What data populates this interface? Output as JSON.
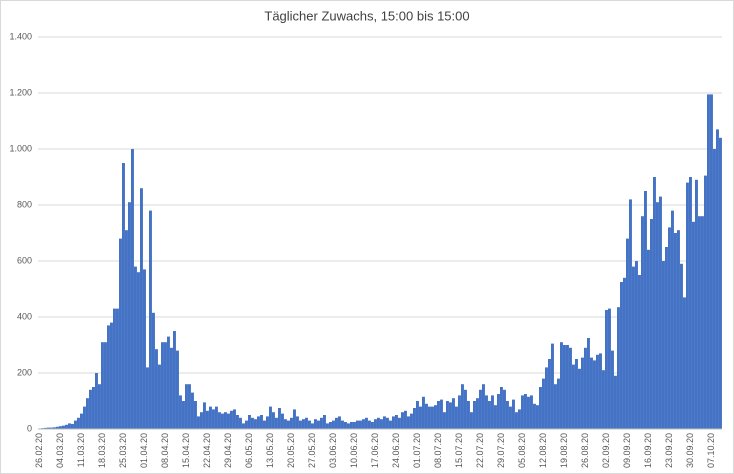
{
  "chart_data": {
    "type": "bar",
    "title": "Täglicher Zuwachs, 15:00 bis 15:00",
    "color": "#4472c4",
    "grid": true,
    "ylim": [
      0,
      1400
    ],
    "yticks": [
      0,
      200,
      400,
      600,
      800,
      {
        "value": 1000,
        "label": "1.000"
      },
      {
        "value": 1200,
        "label": "1.200"
      },
      {
        "value": 1400,
        "label": "1.400"
      }
    ],
    "categories": [
      "26.02.20",
      null,
      null,
      null,
      null,
      null,
      null,
      "04.03.20",
      null,
      null,
      null,
      null,
      null,
      null,
      "11.03.20",
      null,
      null,
      null,
      null,
      null,
      null,
      "18.03.20",
      null,
      null,
      null,
      null,
      null,
      null,
      "25.03.20",
      null,
      null,
      null,
      null,
      null,
      null,
      "01.04.20",
      null,
      null,
      null,
      null,
      null,
      null,
      "08.04.20",
      null,
      null,
      null,
      null,
      null,
      null,
      "15.04.20",
      null,
      null,
      null,
      null,
      null,
      null,
      "22.04.20",
      null,
      null,
      null,
      null,
      null,
      null,
      "29.04.20",
      null,
      null,
      null,
      null,
      null,
      null,
      "06.05.20",
      null,
      null,
      null,
      null,
      null,
      null,
      "13.05.20",
      null,
      null,
      null,
      null,
      null,
      null,
      "20.05.20",
      null,
      null,
      null,
      null,
      null,
      null,
      "27.05.20",
      null,
      null,
      null,
      null,
      null,
      null,
      "03.06.20",
      null,
      null,
      null,
      null,
      null,
      null,
      "10.06.20",
      null,
      null,
      null,
      null,
      null,
      null,
      "17.06.20",
      null,
      null,
      null,
      null,
      null,
      null,
      "24.06.20",
      null,
      null,
      null,
      null,
      null,
      null,
      "01.07.20",
      null,
      null,
      null,
      null,
      null,
      null,
      "08.07.20",
      null,
      null,
      null,
      null,
      null,
      null,
      "15.07.20",
      null,
      null,
      null,
      null,
      null,
      null,
      "22.07.20",
      null,
      null,
      null,
      null,
      null,
      null,
      "29.07.20",
      null,
      null,
      null,
      null,
      null,
      null,
      "05.08.20",
      null,
      null,
      null,
      null,
      null,
      null,
      "12.08.20",
      null,
      null,
      null,
      null,
      null,
      null,
      "19.08.20",
      null,
      null,
      null,
      null,
      null,
      null,
      "26.08.20",
      null,
      null,
      null,
      null,
      null,
      null,
      "02.09.20",
      null,
      null,
      null,
      null,
      null,
      null,
      "09.09.20",
      null,
      null,
      null,
      null,
      null,
      null,
      "16.09.20",
      null,
      null,
      null,
      null,
      null,
      null,
      "23.09.20",
      null,
      null,
      null,
      null,
      null,
      null,
      "30.09.20",
      null,
      null,
      null,
      null,
      null,
      null,
      "07.10.20",
      null,
      null,
      null
    ],
    "values": [
      2,
      3,
      4,
      5,
      5,
      6,
      8,
      10,
      12,
      15,
      20,
      18,
      30,
      40,
      55,
      80,
      110,
      140,
      150,
      200,
      160,
      310,
      310,
      370,
      380,
      430,
      430,
      680,
      950,
      710,
      810,
      1000,
      580,
      560,
      860,
      570,
      220,
      780,
      415,
      285,
      230,
      310,
      310,
      330,
      290,
      350,
      280,
      120,
      100,
      160,
      160,
      130,
      100,
      45,
      60,
      95,
      65,
      80,
      70,
      80,
      60,
      55,
      60,
      55,
      65,
      70,
      50,
      40,
      20,
      30,
      50,
      40,
      35,
      45,
      50,
      30,
      45,
      80,
      60,
      40,
      75,
      55,
      35,
      30,
      40,
      70,
      45,
      30,
      35,
      40,
      30,
      20,
      35,
      30,
      40,
      50,
      20,
      25,
      30,
      40,
      45,
      30,
      25,
      20,
      25,
      25,
      30,
      30,
      35,
      40,
      30,
      25,
      35,
      40,
      35,
      45,
      40,
      30,
      45,
      50,
      40,
      60,
      65,
      45,
      55,
      75,
      100,
      80,
      115,
      90,
      80,
      80,
      85,
      100,
      105,
      60,
      100,
      95,
      110,
      80,
      120,
      160,
      140,
      100,
      60,
      100,
      110,
      140,
      160,
      120,
      100,
      120,
      85,
      125,
      150,
      140,
      100,
      80,
      105,
      60,
      70,
      120,
      125,
      115,
      120,
      90,
      85,
      150,
      180,
      220,
      250,
      305,
      160,
      180,
      310,
      300,
      300,
      290,
      230,
      250,
      215,
      255,
      290,
      325,
      255,
      245,
      265,
      270,
      210,
      425,
      430,
      280,
      190,
      435,
      525,
      540,
      680,
      820,
      580,
      600,
      550,
      760,
      850,
      640,
      750,
      900,
      810,
      830,
      600,
      650,
      720,
      780,
      700,
      710,
      590,
      470,
      880,
      900,
      740,
      890,
      760,
      760,
      905,
      1195,
      1195,
      1000,
      1070,
      1040
    ]
  }
}
